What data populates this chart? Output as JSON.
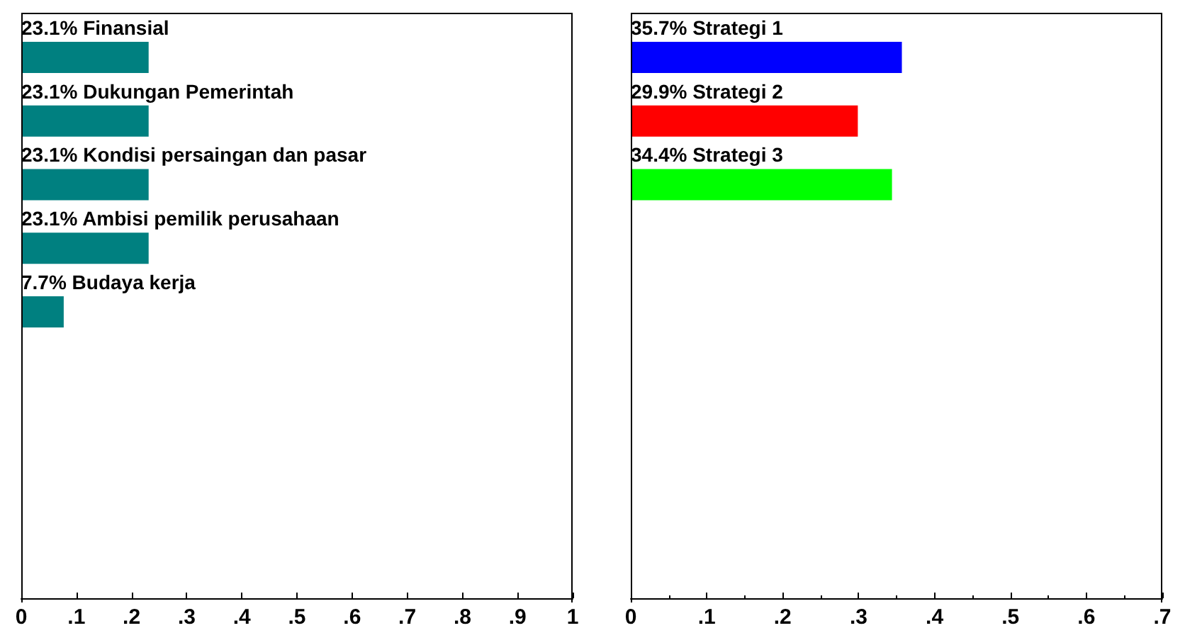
{
  "chart_data": [
    {
      "type": "bar",
      "orientation": "horizontal",
      "categories": [
        "Finansial",
        "Dukungan Pemerintah",
        "Kondisi persaingan dan pasar",
        "Ambisi pemilik perusahaan",
        "Budaya kerja",
        null,
        null,
        null,
        null
      ],
      "values": [
        0.231,
        0.231,
        0.231,
        0.231,
        0.077,
        null,
        null,
        null,
        null
      ],
      "value_labels": [
        "23.1%",
        "23.1%",
        "23.1%",
        "23.1%",
        "7.7%",
        null,
        null,
        null,
        null
      ],
      "color": "#008080",
      "xlim": [
        0,
        1
      ],
      "xticks": [
        {
          "value": 0,
          "label": "0"
        },
        {
          "value": 0.1,
          "label": ".1"
        },
        {
          "value": 0.2,
          "label": ".2"
        },
        {
          "value": 0.3,
          "label": ".3"
        },
        {
          "value": 0.4,
          "label": ".4"
        },
        {
          "value": 0.5,
          "label": ".5"
        },
        {
          "value": 0.6,
          "label": ".6"
        },
        {
          "value": 0.7,
          "label": ".7"
        },
        {
          "value": 0.8,
          "label": ".8"
        },
        {
          "value": 0.9,
          "label": ".9"
        },
        {
          "value": 1,
          "label": "1"
        }
      ],
      "tick_labels": "x"
    },
    {
      "type": "bar",
      "orientation": "horizontal",
      "categories": [
        "Strategi 1",
        "Strategi 2",
        "Strategi 3",
        null,
        null,
        null,
        null,
        null,
        null
      ],
      "values": [
        0.357,
        0.299,
        0.344,
        null,
        null,
        null,
        null,
        null,
        null
      ],
      "value_labels": [
        "35.7%",
        "29.9%",
        "34.4%",
        null,
        null,
        null,
        null,
        null,
        null
      ],
      "colors": [
        "#0000ff",
        "#ff0000",
        "#00ff00",
        null,
        null,
        null,
        null,
        null,
        null
      ],
      "xlim": [
        0,
        0.7
      ],
      "xticks": [
        {
          "value": 0,
          "label": "0"
        },
        {
          "value": 0.1,
          "label": ".1"
        },
        {
          "value": 0.2,
          "label": ".2"
        },
        {
          "value": 0.3,
          "label": ".3"
        },
        {
          "value": 0.4,
          "label": ".4"
        },
        {
          "value": 0.5,
          "label": ".5"
        },
        {
          "value": 0.6,
          "label": ".6"
        },
        {
          "value": 0.7,
          "label": ".7"
        }
      ],
      "tick_labels": "x"
    }
  ]
}
